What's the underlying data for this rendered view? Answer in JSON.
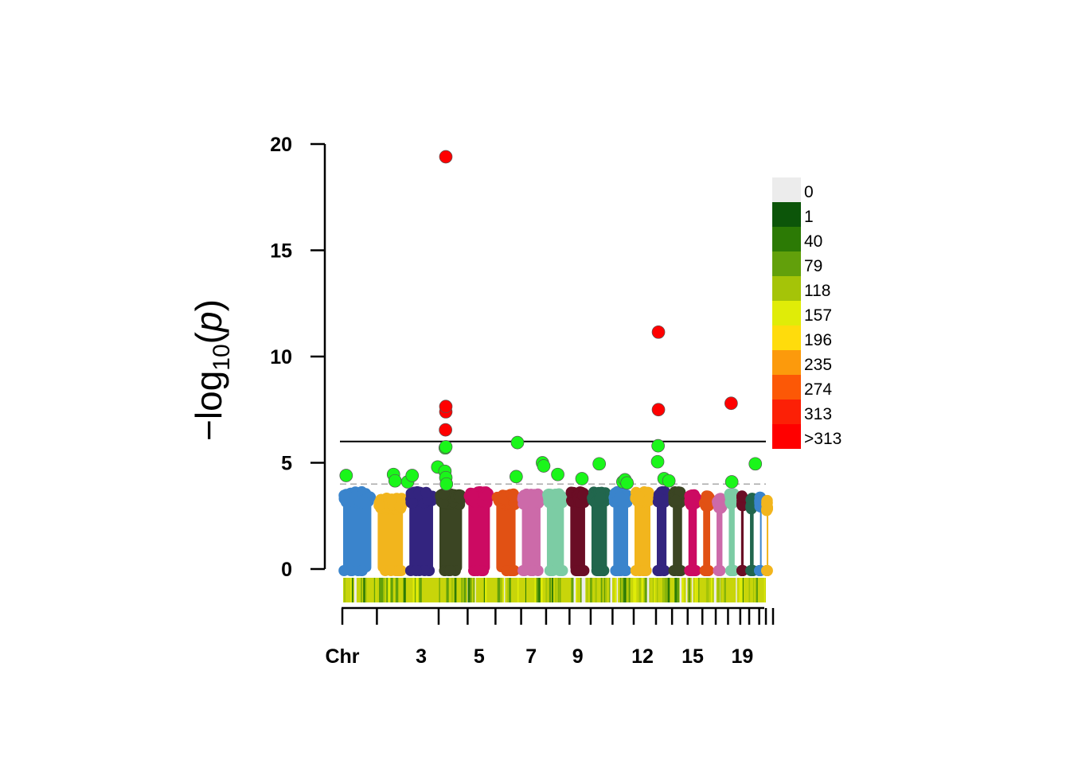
{
  "chart_data": {
    "type": "scatter",
    "title": "",
    "xlabel": "Chr",
    "ylabel": "-log10(p)",
    "ylim": [
      0,
      20
    ],
    "y_ticks": [
      "0",
      "5",
      "10",
      "15",
      "20"
    ],
    "x_tick_labels": [
      "3",
      "5",
      "7",
      "9",
      "12",
      "15",
      "19"
    ],
    "chromosomes": [
      {
        "chr": 1,
        "max_bg": 3.9,
        "color": "#3a84cc"
      },
      {
        "chr": 2,
        "max_bg": 3.6,
        "color": "#f2b51d"
      },
      {
        "chr": 3,
        "max_bg": 3.9,
        "color": "#33247f"
      },
      {
        "chr": 4,
        "max_bg": 3.8,
        "color": "#3b4523"
      },
      {
        "chr": 5,
        "max_bg": 3.9,
        "color": "#cc0a62"
      },
      {
        "chr": 6,
        "max_bg": 3.8,
        "color": "#e15114"
      },
      {
        "chr": 7,
        "max_bg": 3.8,
        "color": "#cc6aa9"
      },
      {
        "chr": 8,
        "max_bg": 3.8,
        "color": "#7ccca4"
      },
      {
        "chr": 9,
        "max_bg": 3.9,
        "color": "#6a0d25"
      },
      {
        "chr": 10,
        "max_bg": 3.9,
        "color": "#21664d"
      },
      {
        "chr": 11,
        "max_bg": 3.9,
        "color": "#3a84cc"
      },
      {
        "chr": 12,
        "max_bg": 3.9,
        "color": "#f2b51d"
      },
      {
        "chr": 13,
        "max_bg": 3.9,
        "color": "#33247f"
      },
      {
        "chr": 14,
        "max_bg": 3.9,
        "color": "#3b4523"
      },
      {
        "chr": 15,
        "max_bg": 3.8,
        "color": "#cc0a62"
      },
      {
        "chr": 16,
        "max_bg": 3.7,
        "color": "#e15114"
      },
      {
        "chr": 17,
        "max_bg": 3.6,
        "color": "#cc6aa9"
      },
      {
        "chr": 18,
        "max_bg": 3.8,
        "color": "#7ccca4"
      },
      {
        "chr": 19,
        "max_bg": 3.7,
        "color": "#6a0d25"
      },
      {
        "chr": 20,
        "max_bg": 3.6,
        "color": "#21664d"
      },
      {
        "chr": 21,
        "max_bg": 3.7,
        "color": "#3a84cc"
      },
      {
        "chr": 22,
        "max_bg": 3.5,
        "color": "#f2b51d"
      }
    ],
    "highlight_points": [
      {
        "x": 0.18,
        "y": 4.4,
        "color": "#1af61a"
      },
      {
        "x": 1.6,
        "y": 4.45,
        "color": "#1af61a"
      },
      {
        "x": 1.65,
        "y": 4.15,
        "color": "#1af61a"
      },
      {
        "x": 2.05,
        "y": 4.1,
        "color": "#1af61a"
      },
      {
        "x": 2.2,
        "y": 4.4,
        "color": "#1af61a"
      },
      {
        "x": 3.05,
        "y": 4.8,
        "color": "#1af61a"
      },
      {
        "x": 3.3,
        "y": 4.6,
        "color": "#1af61a"
      },
      {
        "x": 3.33,
        "y": 4.3,
        "color": "#1af61a"
      },
      {
        "x": 3.35,
        "y": 4.0,
        "color": "#1af61a"
      },
      {
        "x": 3.31,
        "y": 5.7,
        "color": "#1af61a"
      },
      {
        "x": 3.33,
        "y": 5.75,
        "color": "#1af61a"
      },
      {
        "x": 3.32,
        "y": 6.55,
        "color": "#ff0000"
      },
      {
        "x": 3.33,
        "y": 7.4,
        "color": "#ff0000"
      },
      {
        "x": 3.33,
        "y": 7.65,
        "color": "#ff0000"
      },
      {
        "x": 3.33,
        "y": 19.4,
        "color": "#ff0000"
      },
      {
        "x": 5.9,
        "y": 4.35,
        "color": "#1af61a"
      },
      {
        "x": 5.95,
        "y": 5.95,
        "color": "#1af61a"
      },
      {
        "x": 6.95,
        "y": 5.0,
        "color": "#1af61a"
      },
      {
        "x": 7.0,
        "y": 4.85,
        "color": "#1af61a"
      },
      {
        "x": 7.6,
        "y": 4.45,
        "color": "#1af61a"
      },
      {
        "x": 8.7,
        "y": 4.25,
        "color": "#1af61a"
      },
      {
        "x": 9.5,
        "y": 4.95,
        "color": "#1af61a"
      },
      {
        "x": 10.6,
        "y": 4.1,
        "color": "#1af61a"
      },
      {
        "x": 10.7,
        "y": 4.2,
        "color": "#1af61a"
      },
      {
        "x": 10.8,
        "y": 4.05,
        "color": "#1af61a"
      },
      {
        "x": 12.25,
        "y": 5.05,
        "color": "#1af61a"
      },
      {
        "x": 12.28,
        "y": 5.8,
        "color": "#1af61a"
      },
      {
        "x": 12.3,
        "y": 7.5,
        "color": "#ff0000"
      },
      {
        "x": 12.3,
        "y": 11.15,
        "color": "#ff0000"
      },
      {
        "x": 12.65,
        "y": 4.25,
        "color": "#1af61a"
      },
      {
        "x": 12.95,
        "y": 4.15,
        "color": "#1af61a"
      },
      {
        "x": 17.5,
        "y": 4.1,
        "color": "#1af61a"
      },
      {
        "x": 17.45,
        "y": 7.8,
        "color": "#ff0000"
      },
      {
        "x": 19.85,
        "y": 4.95,
        "color": "#1af61a"
      }
    ],
    "thresholds": [
      {
        "y": 6.0,
        "style": "solid",
        "color": "#000000"
      },
      {
        "y": 4.0,
        "style": "dashed",
        "color": "#aaaaaa"
      }
    ],
    "density_legend": {
      "labels": [
        "0",
        "1",
        "40",
        "79",
        "118",
        "157",
        "196",
        "235",
        "274",
        "313",
        ">313"
      ],
      "colors": [
        "#ececec",
        "#0c5509",
        "#2c7a05",
        "#62a00b",
        "#a5c408",
        "#e0ec08",
        "#ffdc0c",
        "#fc9a0c",
        "#fc5806",
        "#fc2006",
        "#ff0000"
      ]
    },
    "grid": false
  }
}
